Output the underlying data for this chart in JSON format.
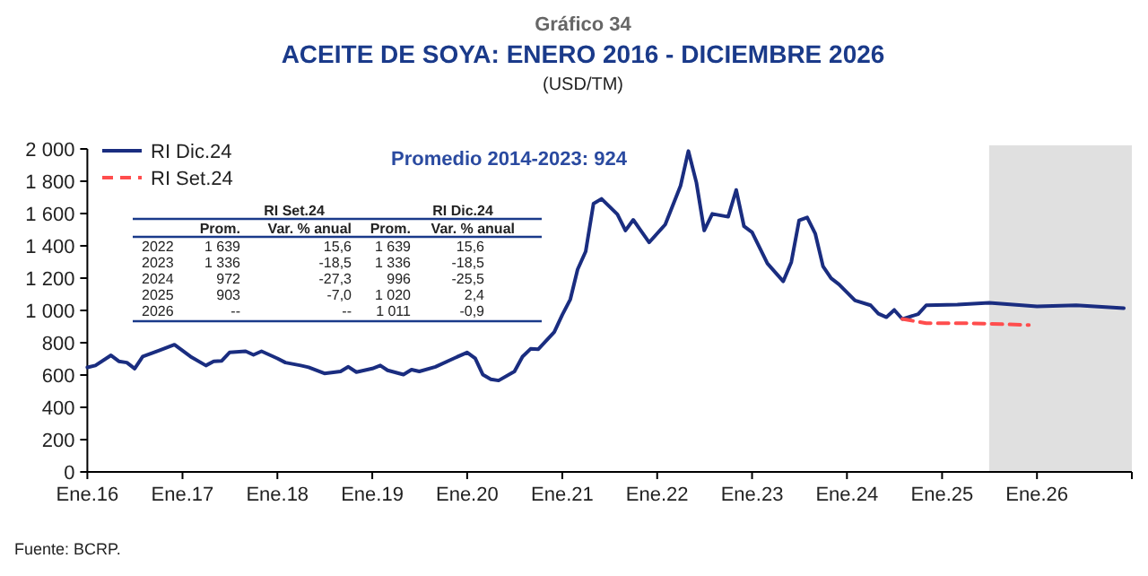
{
  "chart_data": {
    "type": "line",
    "title": "ACEITE DE SOYA: ENERO 2016 - DICIEMBRE 2026",
    "subtitle": "(USD/TM)",
    "annotations": [
      "Gráfico 34",
      "Promedio 2014-2023: 924",
      "Fuente: BCRP.",
      "RI Set.24",
      "RI Dic.24",
      "Prom.",
      "Var. % anual",
      "Prom.",
      "Var. % anual",
      "2022",
      "1 639",
      "15,6",
      "1 639",
      "15,6",
      "2023",
      "1 336",
      "-18,5",
      "1 336",
      "-18,5",
      "2024",
      "972",
      "-27,3",
      "996",
      "-25,5",
      "2025",
      "903",
      "-7,0",
      "1 020",
      "2,4",
      "2026",
      "--",
      "--",
      "1 011",
      "-0,9"
    ],
    "xlim": [
      "2016-01",
      "2027-01"
    ],
    "xticks": [
      {
        "value": "2016-01",
        "label": "Ene.16"
      },
      {
        "value": "2017-01",
        "label": "Ene.17"
      },
      {
        "value": "2018-01",
        "label": "Ene.18"
      },
      {
        "value": "2019-01",
        "label": "Ene.19"
      },
      {
        "value": "2020-01",
        "label": "Ene.20"
      },
      {
        "value": "2021-01",
        "label": "Ene.21"
      },
      {
        "value": "2022-01",
        "label": "Ene.22"
      },
      {
        "value": "2023-01",
        "label": "Ene.23"
      },
      {
        "value": "2024-01",
        "label": "Ene.24"
      },
      {
        "value": "2025-01",
        "label": "Ene.25"
      },
      {
        "value": "2026-01",
        "label": "Ene.26"
      },
      {
        "value": "2027-01",
        "label": null
      }
    ],
    "ylim": [
      0,
      2000
    ],
    "yticks": [
      0,
      200,
      400,
      600,
      800,
      {
        "value": 1000,
        "label": "1 000"
      },
      {
        "value": 1200,
        "label": "1 200"
      },
      {
        "value": 1400,
        "label": "1 400"
      },
      {
        "value": 1600,
        "label": "1 600"
      },
      {
        "value": 1800,
        "label": "1 800"
      },
      {
        "value": 2000,
        "label": "2 000"
      }
    ],
    "bands": [
      {
        "axis": "x",
        "from": "2025-07",
        "to": "2027-01",
        "color": "#e0e0e0"
      }
    ],
    "legend": "top left",
    "grid": false,
    "marker": "none",
    "series": [
      {
        "name": "RI Dic.24",
        "color": "#1a2d80",
        "line_style": "solid",
        "x": [
          "2016-01",
          "2016-02",
          "2016-04",
          "2016-05",
          "2016-06",
          "2016-07",
          "2016-08",
          "2016-10",
          "2016-12",
          "2017-02",
          "2017-04",
          "2017-05",
          "2017-06",
          "2017-07",
          "2017-09",
          "2017-10",
          "2017-11",
          "2018-01",
          "2018-02",
          "2018-04",
          "2018-05",
          "2018-07",
          "2018-09",
          "2018-10",
          "2018-11",
          "2019-01",
          "2019-02",
          "2019-03",
          "2019-05",
          "2019-06",
          "2019-07",
          "2019-09",
          "2019-11",
          "2020-01",
          "2020-02",
          "2020-03",
          "2020-04",
          "2020-05",
          "2020-07",
          "2020-08",
          "2020-09",
          "2020-10",
          "2020-12",
          "2021-01",
          "2021-02",
          "2021-03",
          "2021-04",
          "2021-05",
          "2021-06",
          "2021-08",
          "2021-09",
          "2021-10",
          "2021-12",
          "2022-02",
          "2022-04",
          "2022-05",
          "2022-06",
          "2022-07",
          "2022-08",
          "2022-10",
          "2022-11",
          "2022-12",
          "2023-01",
          "2023-03",
          "2023-05",
          "2023-06",
          "2023-07",
          "2023-08",
          "2023-09",
          "2023-10",
          "2023-11",
          "2023-12",
          "2024-02",
          "2024-04",
          "2024-05",
          "2024-06",
          "2024-07",
          "2024-08",
          "2024-10",
          "2024-11",
          "2025-03",
          "2025-07",
          "2026-01",
          "2026-06",
          "2026-12"
        ],
        "values": [
          647,
          659,
          722,
          685,
          677,
          640,
          714,
          751,
          788,
          714,
          659,
          685,
          688,
          740,
          747,
          725,
          747,
          703,
          677,
          659,
          648,
          610,
          622,
          651,
          618,
          640,
          659,
          629,
          603,
          633,
          622,
          651,
          696,
          740,
          703,
          603,
          574,
          566,
          622,
          714,
          762,
          760,
          866,
          973,
          1069,
          1254,
          1365,
          1661,
          1691,
          1595,
          1495,
          1561,
          1421,
          1532,
          1772,
          1987,
          1791,
          1495,
          1598,
          1580,
          1746,
          1521,
          1484,
          1291,
          1180,
          1299,
          1558,
          1576,
          1476,
          1273,
          1199,
          1162,
          1062,
          1032,
          980,
          958,
          1003,
          947,
          977,
          1032,
          1036,
          1047,
          1025,
          1032,
          1014
        ]
      },
      {
        "name": "RI Set.24",
        "color": "#ff4d4d",
        "line_style": "dashed",
        "x": [
          "2024-08",
          "2024-11",
          "2025-04",
          "2025-12"
        ],
        "values": [
          947,
          921,
          921,
          910
        ]
      }
    ]
  }
}
